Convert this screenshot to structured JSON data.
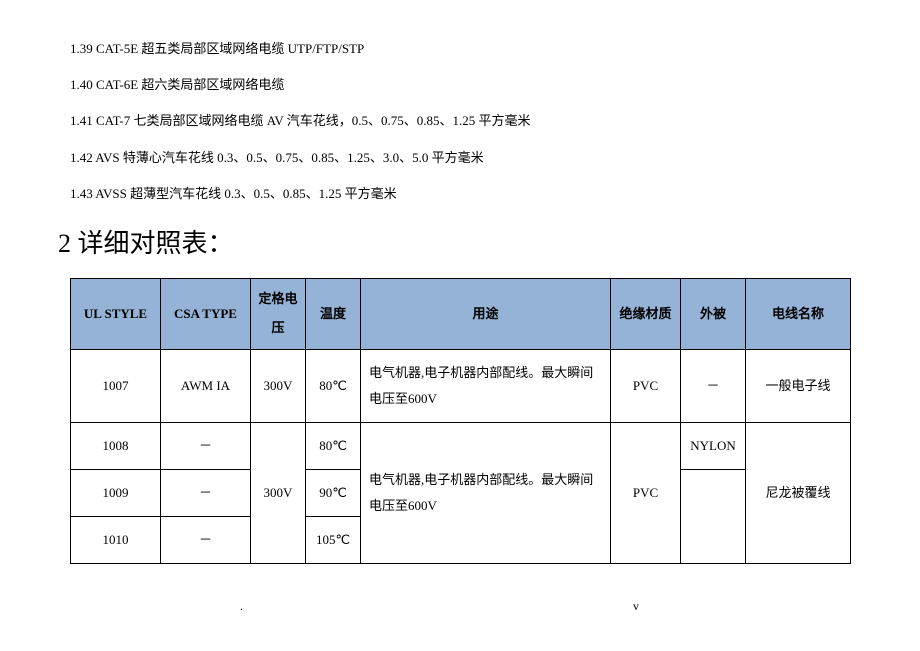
{
  "list": {
    "l139": "1.39 CAT-5E 超五类局部区域网络电缆 UTP/FTP/STP",
    "l140": "1.40 CAT-6E 超六类局部区域网络电缆",
    "l141": "1.41 CAT-7 七类局部区域网络电缆 AV 汽车花线，0.5、0.75、0.85、1.25 平方毫米",
    "l142": "1.42 AVS 特薄心汽车花线 0.3、0.5、0.75、0.85、1.25、3.0、5.0 平方毫米",
    "l143": "1.43 AVSS 超薄型汽车花线 0.3、0.5、0.85、1.25 平方毫米"
  },
  "section_title": "2 详细对照表：",
  "table": {
    "headers": {
      "ulstyle": "UL STYLE",
      "csatype": "CSA TYPE",
      "voltage": "定格电压",
      "temp": "温度",
      "use": "用途",
      "insul": "绝缘材质",
      "jacket": "外被",
      "name": "电线名称"
    },
    "rows": {
      "r1": {
        "ulstyle": "1007",
        "csatype": "AWM IA",
        "voltage": "300V",
        "temp": "80℃",
        "use": "电气机器,电子机器内部配线。最大瞬间电压至600V",
        "insul": "PVC",
        "jacket": "－",
        "name": "一般电子线"
      },
      "r2": {
        "ulstyle": "1008",
        "csatype": "－",
        "temp": "80℃"
      },
      "r3": {
        "ulstyle": "1009",
        "csatype": "－",
        "temp": "90℃"
      },
      "r4": {
        "ulstyle": "1010",
        "csatype": "－",
        "temp": "105℃"
      },
      "merged": {
        "voltage": "300V",
        "use": "电气机器,电子机器内部配线。最大瞬间电压至600V",
        "insul": "PVC",
        "jacket": "NYLON",
        "name": "尼龙被覆线"
      }
    }
  },
  "footer": {
    "dot1": ".",
    "dot2": "v"
  }
}
